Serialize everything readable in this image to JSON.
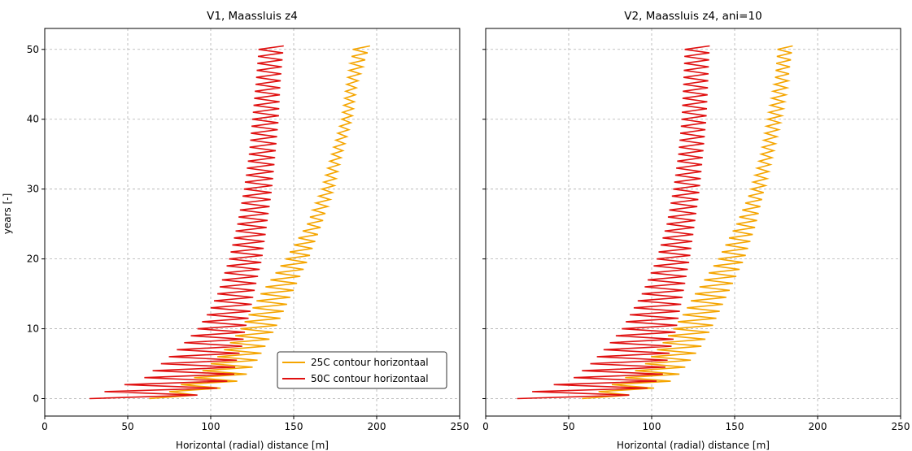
{
  "figure": {
    "background": "#ffffff",
    "grid_color": "#b0b0b0"
  },
  "chart_data": [
    {
      "type": "line",
      "title": "V1, Maassluis z4",
      "xlabel": "Horizontal (radial) distance [m]",
      "ylabel": "years [-]",
      "xlim": [
        0,
        250
      ],
      "ylim": [
        -2.5,
        53
      ],
      "xticks": [
        "0",
        "50",
        "100",
        "150",
        "200",
        "250"
      ],
      "yticks": [
        "0",
        "10",
        "20",
        "30",
        "40",
        "50"
      ],
      "xtick_values": [
        0,
        50,
        100,
        150,
        200,
        250
      ],
      "ytick_values": [
        0,
        10,
        20,
        30,
        40,
        50
      ],
      "grid": true,
      "show_yticklabels": true,
      "legend": {
        "placement": "lower-right",
        "entries": [
          "25C contour horizontaal",
          "50C contour horizontaal"
        ]
      },
      "series": [
        {
          "name": "25C contour horizontaal",
          "color": "#f5a500",
          "style": "seasonal oscillation (two points per year, 0.5-year spacing)",
          "years": [
            0,
            1,
            2,
            3,
            5,
            7.5,
            10,
            12.5,
            15,
            20,
            25,
            30,
            35,
            40,
            45,
            50.5
          ],
          "inner_x": [
            63,
            75,
            82,
            90,
            100,
            110,
            118,
            124,
            130,
            145,
            158,
            167,
            173,
            179,
            182,
            186
          ],
          "outer_x": [
            82,
            100,
            112,
            120,
            127,
            133,
            139,
            144,
            149,
            159,
            167,
            174,
            179,
            185,
            188,
            196
          ]
        },
        {
          "name": "50C contour horizontaal",
          "color": "#e01010",
          "style": "seasonal oscillation (two points per year, 0.5-year spacing)",
          "years": [
            0,
            1,
            2,
            3,
            5,
            7.5,
            10,
            12.5,
            15,
            20,
            25,
            30,
            35,
            40,
            45,
            50.5
          ],
          "inner_x": [
            27,
            36,
            48,
            60,
            70,
            82,
            92,
            99,
            104,
            111,
            116,
            120,
            123,
            125,
            127,
            129
          ],
          "outer_x": [
            82,
            102,
            106,
            114,
            115,
            119,
            121,
            124,
            126,
            131,
            134,
            137,
            139,
            141,
            142,
            144
          ]
        }
      ]
    },
    {
      "type": "line",
      "title": "V2, Maassluis z4, ani=10",
      "xlabel": "Horizontal (radial) distance [m]",
      "ylabel": "",
      "xlim": [
        0,
        250
      ],
      "ylim": [
        -2.5,
        53
      ],
      "xticks": [
        "0",
        "50",
        "100",
        "150",
        "200",
        "250"
      ],
      "yticks": [],
      "xtick_values": [
        0,
        50,
        100,
        150,
        200,
        250
      ],
      "ytick_values": [
        0,
        10,
        20,
        30,
        40,
        50
      ],
      "grid": true,
      "show_yticklabels": false,
      "legend": null,
      "series": [
        {
          "name": "25C contour horizontaal",
          "color": "#f5a500",
          "style": "seasonal oscillation (two points per year, 0.5-year spacing)",
          "years": [
            0,
            1,
            2,
            3,
            5,
            7.5,
            10,
            12.5,
            15,
            20,
            25,
            30,
            35,
            40,
            45,
            50.5
          ],
          "inner_x": [
            58,
            68,
            76,
            84,
            96,
            105,
            113,
            120,
            126,
            140,
            151,
            160,
            166,
            170,
            174,
            176
          ],
          "outer_x": [
            78,
            95,
            108,
            115,
            122,
            130,
            136,
            141,
            146,
            156,
            163,
            168,
            173,
            178,
            182,
            185
          ]
        },
        {
          "name": "50C contour horizontaal",
          "color": "#e01010",
          "style": "seasonal oscillation (two points per year, 0.5-year spacing)",
          "years": [
            0,
            1,
            2,
            3,
            5,
            7.5,
            10,
            12.5,
            15,
            20,
            25,
            30,
            35,
            40,
            45,
            50.5
          ],
          "inner_x": [
            19,
            28,
            41,
            53,
            63,
            73,
            82,
            88,
            94,
            103,
            109,
            113,
            116,
            118,
            119,
            120
          ],
          "outer_x": [
            78,
            95,
            100,
            106,
            109,
            112,
            115,
            117,
            119,
            123,
            126,
            129,
            131,
            133,
            134,
            135
          ]
        }
      ]
    }
  ]
}
